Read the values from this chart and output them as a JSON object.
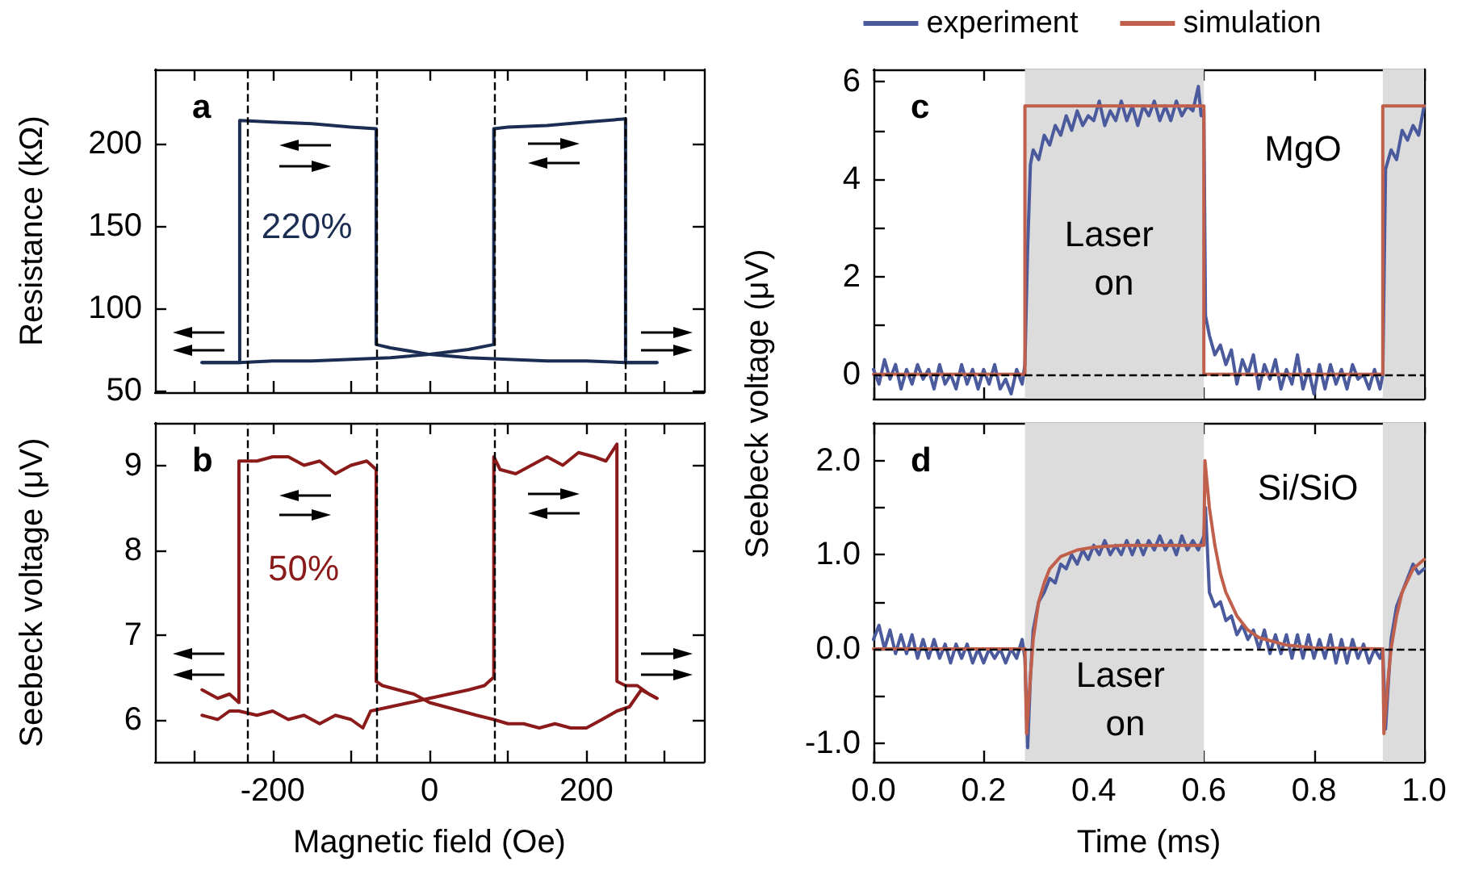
{
  "chart_data": [
    {
      "type": "line",
      "title": "a",
      "ylabel": "Resistance (kΩ)",
      "xlim": [
        -350,
        350
      ],
      "xticks": [
        {
          "value": -300,
          "label": null
        },
        -200,
        {
          "value": -100,
          "label": null
        },
        0,
        {
          "value": 100,
          "label": null
        },
        200,
        {
          "value": 300,
          "label": null
        }
      ],
      "ylim": [
        49,
        245
      ],
      "yticks": [
        50,
        100,
        150,
        200
      ],
      "tick_labels": "y",
      "grid": false,
      "marker": "none",
      "line_style": "solid",
      "series": [
        {
          "color": "#1b2d52",
          "x": [
            -290,
            -242,
            -200,
            -150,
            -100,
            -50,
            0,
            50,
            82,
            82,
            100,
            150,
            200,
            250,
            250,
            290
          ],
          "values": [
            67,
            67,
            68,
            68,
            69,
            70,
            72,
            75,
            78,
            209,
            210,
            211,
            213,
            215,
            67,
            67
          ]
        },
        {
          "color": "#1b2d52",
          "x": [
            290,
            250,
            200,
            150,
            100,
            50,
            0,
            -50,
            -68,
            -68,
            -100,
            -150,
            -200,
            -242,
            -242,
            -290
          ],
          "values": [
            67,
            67,
            68,
            68,
            69,
            70,
            72,
            76,
            78,
            209,
            210,
            212,
            213,
            214,
            67,
            67
          ]
        }
      ],
      "ref_lines": [
        {
          "axis": "x",
          "value": -232,
          "label": null,
          "color": "#000000",
          "line_style": "dashed"
        },
        {
          "axis": "x",
          "value": -68,
          "label": null,
          "color": "#000000",
          "line_style": "dashed"
        },
        {
          "axis": "x",
          "value": 82,
          "label": null,
          "color": "#000000",
          "line_style": "dashed"
        },
        {
          "axis": "x",
          "value": 250,
          "label": null,
          "color": "#000000",
          "line_style": "dashed"
        }
      ],
      "annotations": [
        "220%"
      ]
    },
    {
      "type": "line",
      "title": "b",
      "xlabel": "Magnetic field (Oe)",
      "ylabel": "Seebeck voltage (μV)",
      "xlim": [
        -350,
        350
      ],
      "xticks": [
        {
          "value": -300,
          "label": null
        },
        -200,
        {
          "value": -100,
          "label": null
        },
        0,
        {
          "value": 100,
          "label": null
        },
        200,
        {
          "value": 300,
          "label": null
        }
      ],
      "ylim": [
        5.5,
        9.5
      ],
      "yticks": [
        6,
        7,
        8,
        9
      ],
      "grid": false,
      "marker": "none",
      "line_style": "solid",
      "series": [
        {
          "color": "#8b1a1a",
          "x": [
            -290,
            -270,
            -255,
            -243,
            -220,
            -200,
            -180,
            -160,
            -140,
            -120,
            -100,
            -85,
            -75,
            -50,
            -25,
            0,
            25,
            50,
            70,
            82,
            82,
            90,
            110,
            130,
            150,
            170,
            190,
            210,
            225,
            239,
            239,
            250,
            265,
            280,
            290
          ],
          "values": [
            6.05,
            6.0,
            6.1,
            6.1,
            6.05,
            6.1,
            6.0,
            6.05,
            5.95,
            6.05,
            6.0,
            5.9,
            6.1,
            6.15,
            6.2,
            6.25,
            6.3,
            6.35,
            6.4,
            6.5,
            9.1,
            8.95,
            8.9,
            9.0,
            9.1,
            9.0,
            9.15,
            9.1,
            9.05,
            9.25,
            6.45,
            6.4,
            6.4,
            6.3,
            6.25
          ]
        },
        {
          "color": "#8b1a1a",
          "x": [
            290,
            280,
            270,
            255,
            239,
            220,
            200,
            180,
            160,
            140,
            120,
            100,
            82,
            60,
            40,
            20,
            0,
            -20,
            -40,
            -60,
            -68,
            -68,
            -80,
            -100,
            -120,
            -140,
            -160,
            -180,
            -200,
            -220,
            -243,
            -243,
            -255,
            -270,
            -290
          ],
          "values": [
            6.25,
            6.3,
            6.35,
            6.15,
            6.1,
            6.0,
            5.9,
            5.9,
            5.95,
            5.9,
            5.95,
            5.95,
            6.0,
            6.05,
            6.1,
            6.15,
            6.2,
            6.3,
            6.35,
            6.4,
            6.45,
            8.95,
            9.05,
            9.0,
            8.9,
            9.05,
            9.0,
            9.1,
            9.1,
            9.05,
            9.05,
            6.2,
            6.3,
            6.25,
            6.35
          ]
        }
      ],
      "ref_lines": [
        {
          "axis": "x",
          "value": -232,
          "label": null,
          "color": "#000000",
          "line_style": "dashed"
        },
        {
          "axis": "x",
          "value": -68,
          "label": null,
          "color": "#000000",
          "line_style": "dashed"
        },
        {
          "axis": "x",
          "value": 82,
          "label": null,
          "color": "#000000",
          "line_style": "dashed"
        },
        {
          "axis": "x",
          "value": 250,
          "label": null,
          "color": "#000000",
          "line_style": "dashed"
        }
      ],
      "annotations": [
        "50%"
      ]
    },
    {
      "type": "line",
      "title": "c",
      "xlim": [
        0,
        1
      ],
      "xticks": [
        {
          "value": 0,
          "label": "0.0"
        },
        {
          "value": 0.2,
          "label": "0.2"
        },
        {
          "value": 0.4,
          "label": "0.4"
        },
        {
          "value": 0.6,
          "label": "0.6"
        },
        {
          "value": 0.8,
          "label": "0.8"
        },
        {
          "value": 1,
          "label": "1.0"
        }
      ],
      "ylim": [
        -0.5,
        6.25
      ],
      "yticks": [
        0,
        {
          "value": 1,
          "label": null
        },
        2,
        {
          "value": 3,
          "label": null
        },
        4,
        {
          "value": 5,
          "label": null
        },
        6
      ],
      "tick_labels": "y",
      "grid": false,
      "marker": "none",
      "line_style": "solid",
      "legend": "top",
      "series": [
        {
          "name": "experiment",
          "color": "#4a5a9c",
          "x": [
            0,
            0.01,
            0.02,
            0.03,
            0.04,
            0.05,
            0.06,
            0.07,
            0.08,
            0.09,
            0.1,
            0.11,
            0.12,
            0.13,
            0.14,
            0.15,
            0.16,
            0.17,
            0.18,
            0.19,
            0.2,
            0.21,
            0.22,
            0.23,
            0.24,
            0.25,
            0.26,
            0.27,
            0.275,
            0.28,
            0.285,
            0.29,
            0.3,
            0.31,
            0.32,
            0.33,
            0.34,
            0.35,
            0.36,
            0.37,
            0.38,
            0.39,
            0.4,
            0.41,
            0.42,
            0.43,
            0.44,
            0.45,
            0.46,
            0.47,
            0.48,
            0.49,
            0.5,
            0.51,
            0.52,
            0.53,
            0.54,
            0.55,
            0.56,
            0.57,
            0.58,
            0.59,
            0.595,
            0.6,
            0.603,
            0.61,
            0.62,
            0.63,
            0.64,
            0.65,
            0.66,
            0.67,
            0.68,
            0.69,
            0.7,
            0.71,
            0.72,
            0.73,
            0.74,
            0.75,
            0.76,
            0.77,
            0.78,
            0.79,
            0.8,
            0.81,
            0.82,
            0.83,
            0.84,
            0.85,
            0.86,
            0.87,
            0.88,
            0.89,
            0.9,
            0.91,
            0.92,
            0.925,
            0.93,
            0.94,
            0.95,
            0.96,
            0.97,
            0.98,
            0.99,
            1
          ],
          "values": [
            0.1,
            -0.2,
            0.3,
            -0.1,
            0.2,
            -0.3,
            0.1,
            -0.2,
            0.2,
            -0.1,
            0.1,
            -0.3,
            0.2,
            -0.2,
            0,
            -0.3,
            0.2,
            -0.2,
            0.1,
            -0.3,
            0.1,
            -0.2,
            0.2,
            -0.3,
            -0.1,
            -0.4,
            0.1,
            -0.2,
            0.2,
            2.6,
            4.3,
            4.6,
            4.4,
            4.9,
            4.7,
            5.1,
            4.9,
            5.3,
            5,
            5.4,
            5.1,
            5.3,
            5.2,
            5.6,
            5.1,
            5.4,
            5.2,
            5.6,
            5.2,
            5.5,
            5.1,
            5.5,
            5.3,
            5.6,
            5.2,
            5.5,
            5.2,
            5.6,
            5.3,
            5.5,
            5.4,
            5.9,
            5.3,
            5.4,
            1.2,
            0.8,
            0.4,
            0.6,
            0.2,
            0.5,
            -0.2,
            0.3,
            0,
            0.4,
            -0.3,
            0.2,
            -0.1,
            0.3,
            -0.3,
            0.1,
            -0.2,
            0.4,
            -0.3,
            0.1,
            -0.4,
            0.2,
            -0.3,
            0.2,
            -0.2,
            0.1,
            -0.3,
            0.2,
            -0.1,
            0,
            -0.3,
            0.1,
            -0.3,
            0,
            4.2,
            4.6,
            4.4,
            5,
            4.8,
            5.1,
            4.9,
            5.5
          ]
        },
        {
          "name": "simulation",
          "color": "#c0604c",
          "x": [
            0,
            0.275,
            0.275,
            0.6,
            0.6,
            0.925,
            0.925,
            1
          ],
          "values": [
            0,
            0,
            5.5,
            5.5,
            0,
            0,
            5.5,
            5.5
          ]
        }
      ],
      "ref_lines": [
        {
          "axis": "y",
          "value": 0,
          "label": null,
          "color": "#000000",
          "line_style": "dashed"
        }
      ],
      "bands": [
        {
          "axis": "x",
          "from": 0.275,
          "to": 0.6,
          "label": null,
          "color": "#dcdcdc"
        },
        {
          "axis": "x",
          "from": 0.925,
          "to": 1,
          "label": null,
          "color": "#dcdcdc"
        }
      ],
      "annotations": [
        "Laser on",
        "MgO"
      ]
    },
    {
      "type": "line",
      "title": "d",
      "xlabel": "Time (ms)",
      "ylabel": "Seebeck voltage (μV)",
      "xlim": [
        0,
        1
      ],
      "xticks": [
        {
          "value": 0,
          "label": "0.0"
        },
        {
          "value": 0.2,
          "label": "0.2"
        },
        {
          "value": 0.4,
          "label": "0.4"
        },
        {
          "value": 0.6,
          "label": "0.6"
        },
        {
          "value": 0.8,
          "label": "0.8"
        },
        {
          "value": 1,
          "label": "1.0"
        }
      ],
      "ylim": [
        -1.2,
        2.4
      ],
      "yticks": [
        {
          "value": -1,
          "label": "-1.0"
        },
        {
          "value": -0.5,
          "label": null
        },
        {
          "value": 0,
          "label": "0.0"
        },
        {
          "value": 0.5,
          "label": null
        },
        {
          "value": 1,
          "label": "1.0"
        },
        {
          "value": 1.5,
          "label": null
        },
        {
          "value": 2,
          "label": "2.0"
        }
      ],
      "grid": false,
      "marker": "none",
      "line_style": "solid",
      "series": [
        {
          "color": "#4a5a9c",
          "x": [
            0,
            0.01,
            0.02,
            0.03,
            0.04,
            0.05,
            0.06,
            0.07,
            0.08,
            0.09,
            0.1,
            0.11,
            0.12,
            0.13,
            0.14,
            0.15,
            0.16,
            0.17,
            0.18,
            0.19,
            0.2,
            0.21,
            0.22,
            0.23,
            0.24,
            0.25,
            0.26,
            0.27,
            0.275,
            0.28,
            0.285,
            0.29,
            0.3,
            0.31,
            0.32,
            0.33,
            0.34,
            0.35,
            0.36,
            0.37,
            0.38,
            0.39,
            0.4,
            0.41,
            0.42,
            0.43,
            0.44,
            0.45,
            0.46,
            0.47,
            0.48,
            0.49,
            0.5,
            0.51,
            0.52,
            0.53,
            0.54,
            0.55,
            0.56,
            0.57,
            0.58,
            0.59,
            0.6,
            0.603,
            0.61,
            0.62,
            0.63,
            0.64,
            0.65,
            0.66,
            0.67,
            0.68,
            0.69,
            0.7,
            0.71,
            0.72,
            0.73,
            0.74,
            0.75,
            0.76,
            0.77,
            0.78,
            0.79,
            0.8,
            0.81,
            0.82,
            0.83,
            0.84,
            0.85,
            0.86,
            0.87,
            0.88,
            0.89,
            0.9,
            0.91,
            0.92,
            0.925,
            0.93,
            0.94,
            0.95,
            0.96,
            0.97,
            0.98,
            0.99,
            1
          ],
          "values": [
            0.1,
            0.25,
            0,
            0.2,
            -0.05,
            0.15,
            -0.05,
            0.15,
            -0.1,
            0.1,
            -0.1,
            0.1,
            -0.1,
            0.05,
            -0.15,
            0.05,
            -0.1,
            0.05,
            -0.15,
            0,
            -0.15,
            0,
            -0.1,
            0,
            -0.15,
            0,
            -0.1,
            0.1,
            -0.1,
            -1.05,
            -0.3,
            0.2,
            0.5,
            0.6,
            0.75,
            0.7,
            0.9,
            0.85,
            1,
            0.9,
            1.05,
            0.95,
            1.1,
            1,
            1.15,
            1,
            1.1,
            1,
            1.15,
            1,
            1.15,
            1,
            1.15,
            1.05,
            1.2,
            1.05,
            1.15,
            1,
            1.2,
            1.05,
            1.15,
            1.05,
            1.2,
            1.5,
            0.6,
            0.45,
            0.5,
            0.3,
            0.35,
            0.15,
            0.25,
            0.1,
            0.2,
            0,
            0.2,
            -0.05,
            0.15,
            -0.05,
            0.15,
            -0.1,
            0.15,
            -0.1,
            0.15,
            -0.1,
            0.1,
            -0.1,
            0.15,
            -0.15,
            0.1,
            -0.15,
            0.1,
            -0.1,
            0.05,
            -0.15,
            0,
            -0.1,
            0,
            -0.85,
            0.1,
            0.45,
            0.6,
            0.75,
            0.9,
            0.8,
            0.85
          ]
        },
        {
          "color": "#c0604c",
          "x": [
            0,
            0.275,
            0.278,
            0.285,
            0.29,
            0.3,
            0.31,
            0.32,
            0.34,
            0.37,
            0.4,
            0.45,
            0.5,
            0.6,
            0.602,
            0.61,
            0.62,
            0.63,
            0.64,
            0.66,
            0.68,
            0.7,
            0.75,
            0.8,
            0.925,
            0.927,
            0.935,
            0.94,
            0.95,
            0.96,
            0.98,
            1
          ],
          "values": [
            0,
            0,
            -0.9,
            -0.3,
            0.1,
            0.5,
            0.7,
            0.85,
            0.98,
            1.05,
            1.08,
            1.1,
            1.1,
            1.1,
            2,
            1.5,
            1.1,
            0.8,
            0.6,
            0.35,
            0.2,
            0.12,
            0.04,
            0.01,
            0,
            -0.9,
            -0.3,
            0,
            0.35,
            0.6,
            0.85,
            0.95
          ]
        }
      ],
      "ref_lines": [
        {
          "axis": "y",
          "value": 0,
          "label": null,
          "color": "#000000",
          "line_style": "dashed"
        }
      ],
      "bands": [
        {
          "axis": "x",
          "from": 0.275,
          "to": 0.6,
          "label": null,
          "color": "#dcdcdc"
        },
        {
          "axis": "x",
          "from": 0.925,
          "to": 1,
          "label": null,
          "color": "#dcdcdc"
        }
      ],
      "annotations": [
        "Laser on",
        "Si/SiO"
      ]
    }
  ]
}
